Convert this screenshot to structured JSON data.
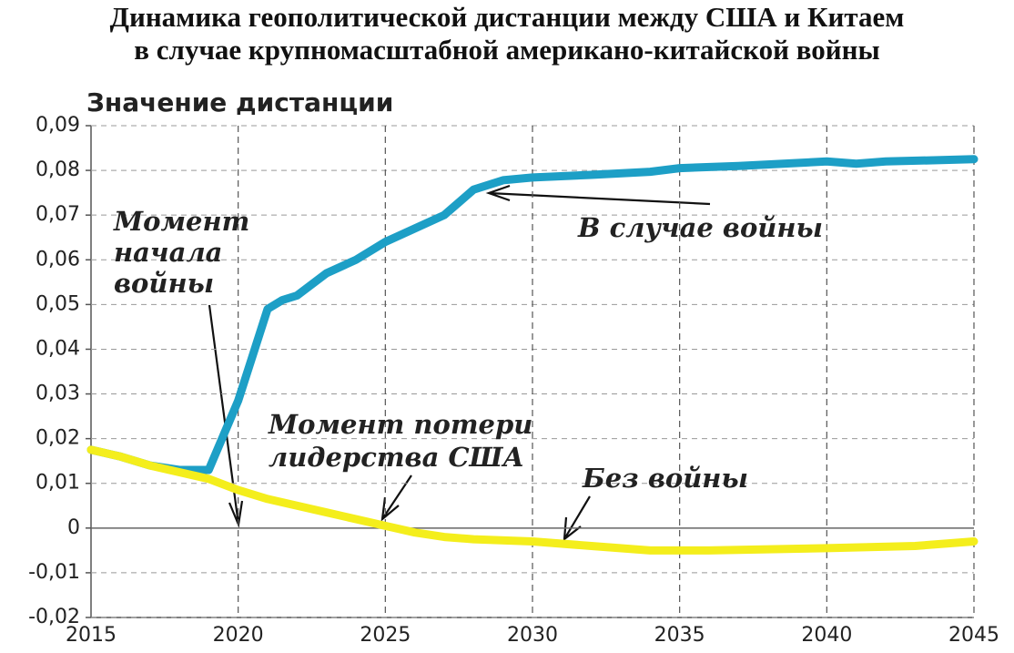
{
  "chart_data": {
    "type": "line",
    "title": [
      "Динамика геополитической дистанции между США и Китаем",
      "в случае крупномасштабной американо-китайской войны"
    ],
    "y_label": "Значение дистанции",
    "xlim": [
      2015,
      2045
    ],
    "xticks": [
      2015,
      2020,
      2025,
      2030,
      2035,
      2040,
      2045
    ],
    "ylim": [
      -0.02,
      0.09
    ],
    "yticks": [
      {
        "value": -0.02,
        "label": "-0,02"
      },
      {
        "value": -0.01,
        "label": "-0,01"
      },
      0,
      {
        "value": 0.01,
        "label": "0,01"
      },
      {
        "value": 0.02,
        "label": "0,02"
      },
      {
        "value": 0.03,
        "label": "0,03"
      },
      {
        "value": 0.04,
        "label": "0,04"
      },
      {
        "value": 0.05,
        "label": "0,05"
      },
      {
        "value": 0.06,
        "label": "0,06"
      },
      {
        "value": 0.07,
        "label": "0,07"
      },
      {
        "value": 0.08,
        "label": "0,08"
      },
      {
        "value": 0.09,
        "label": "0,09"
      }
    ],
    "grid": true,
    "series": [
      {
        "color": "#1d9fc6",
        "x": [
          2015,
          2016,
          2017,
          2018,
          2019,
          2020,
          2021,
          2021.5,
          2022,
          2023,
          2024,
          2025,
          2026,
          2027,
          2028,
          2029,
          2030,
          2032,
          2034,
          2035,
          2037,
          2040,
          2041,
          2042,
          2045
        ],
        "values": [
          0.0175,
          0.016,
          0.014,
          0.013,
          0.013,
          0.0285,
          0.049,
          0.051,
          0.052,
          0.057,
          0.06,
          0.064,
          0.067,
          0.07,
          0.0757,
          0.0778,
          0.0784,
          0.079,
          0.0797,
          0.0805,
          0.081,
          0.082,
          0.0815,
          0.082,
          0.0825
        ]
      },
      {
        "color": "#f4ee1c",
        "x": [
          2015,
          2016,
          2017,
          2018,
          2019,
          2020,
          2021,
          2022,
          2023,
          2024,
          2025,
          2026,
          2027,
          2028,
          2030,
          2032,
          2034,
          2036,
          2040,
          2043,
          2045
        ],
        "values": [
          0.0175,
          0.016,
          0.014,
          0.0125,
          0.011,
          0.0085,
          0.0065,
          0.005,
          0.0035,
          0.002,
          0.0005,
          -0.001,
          -0.002,
          -0.0025,
          -0.003,
          -0.004,
          -0.005,
          -0.005,
          -0.0045,
          -0.004,
          -0.003
        ]
      }
    ],
    "annotations": [
      [
        "Момент",
        "начала",
        "войны"
      ],
      [
        "В случае войны"
      ],
      [
        "Момент потери",
        "лидерства США"
      ],
      [
        "Без войны"
      ]
    ]
  }
}
